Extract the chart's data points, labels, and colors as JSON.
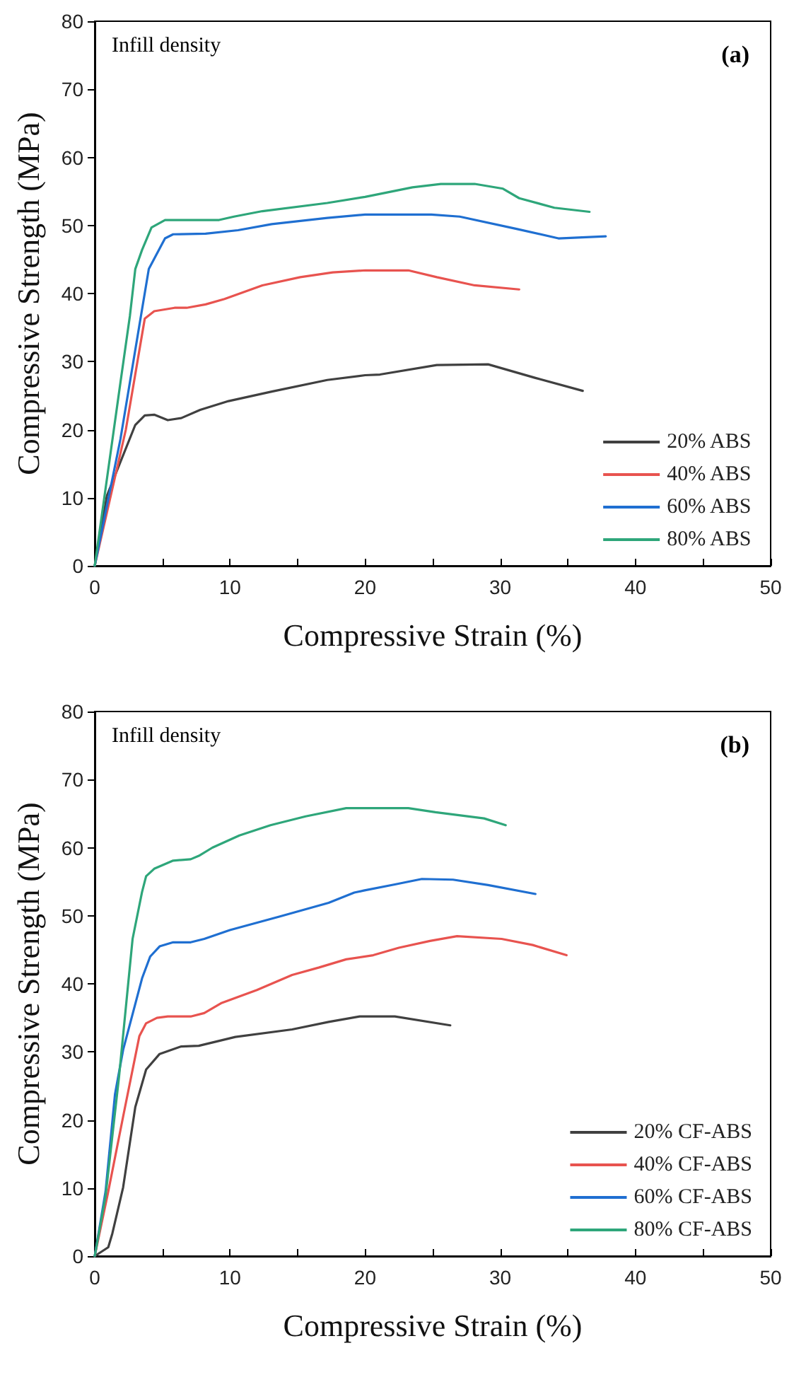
{
  "chart_data": [
    {
      "type": "line",
      "title": "(a)",
      "annotations": [
        "Infill density"
      ],
      "xlabel": "Compressive Strain (%)",
      "ylabel": "Compressive Strength (MPa)",
      "xlim": [
        0,
        50
      ],
      "xticks": [
        0,
        {
          "value": 5,
          "label": null
        },
        10,
        {
          "value": 15,
          "label": null
        },
        20,
        {
          "value": 25,
          "label": null
        },
        30,
        {
          "value": 35,
          "label": null
        },
        40,
        {
          "value": 45,
          "label": null
        },
        50
      ],
      "ylim": [
        0,
        80
      ],
      "yticks": [
        0,
        10,
        20,
        30,
        40,
        50,
        60,
        70,
        80
      ],
      "grid": false,
      "legend": "bottom right",
      "marker": "none",
      "line_style": "solid",
      "series": [
        {
          "name": "20% ABS",
          "color": "#404040",
          "x": [
            0,
            0.9,
            3,
            3.7,
            4.4,
            5.4,
            6.4,
            7.8,
            9.9,
            13.1,
            17.2,
            20,
            21.1,
            25.3,
            29.1,
            32.6,
            36.1
          ],
          "values": [
            0,
            10.3,
            20.7,
            22.1,
            22.2,
            21.4,
            21.7,
            22.9,
            24.2,
            25.6,
            27.3,
            28,
            28.1,
            29.5,
            29.6,
            27.6,
            25.7
          ]
        },
        {
          "name": "40% ABS",
          "color": "#e8534f",
          "x": [
            0,
            2.3,
            3.7,
            4.4,
            5.9,
            6.8,
            8.2,
            9.6,
            12.4,
            15.2,
            17.6,
            20,
            23.2,
            25.3,
            28.1,
            31.4
          ],
          "values": [
            0,
            20,
            36.3,
            37.4,
            37.9,
            37.9,
            38.4,
            39.2,
            41.2,
            42.4,
            43.1,
            43.4,
            43.4,
            42.4,
            41.2,
            40.6
          ]
        },
        {
          "name": "60% ABS",
          "color": "#1f6fd1",
          "x": [
            0,
            1.9,
            3.3,
            4,
            5.2,
            5.8,
            8.2,
            10.6,
            13.1,
            17.2,
            20,
            24.9,
            27,
            31.2,
            34.3,
            37.8
          ],
          "values": [
            0,
            18.6,
            35.3,
            43.6,
            48.1,
            48.7,
            48.8,
            49.3,
            50.2,
            51.1,
            51.6,
            51.6,
            51.3,
            49.5,
            48.1,
            48.4
          ]
        },
        {
          "name": "80% ABS",
          "color": "#2ea67a",
          "x": [
            0,
            1.9,
            2.6,
            3,
            3.5,
            4.2,
            5.2,
            9.2,
            10.3,
            12.4,
            17.2,
            20,
            23.5,
            25.6,
            28.1,
            30.2,
            31.4,
            34,
            36.6
          ],
          "values": [
            0,
            26.9,
            36.7,
            43.6,
            46.4,
            49.7,
            50.8,
            50.8,
            51.3,
            52.1,
            53.3,
            54.2,
            55.6,
            56.1,
            56.1,
            55.4,
            54,
            52.6,
            52
          ]
        }
      ]
    },
    {
      "type": "line",
      "title": "(b)",
      "annotations": [
        "Infill density"
      ],
      "xlabel": "Compressive Strain (%)",
      "ylabel": "Compressive Strength (MPa)",
      "xlim": [
        0,
        50
      ],
      "xticks": [
        0,
        {
          "value": 5,
          "label": null
        },
        10,
        {
          "value": 15,
          "label": null
        },
        20,
        {
          "value": 25,
          "label": null
        },
        30,
        {
          "value": 35,
          "label": null
        },
        40,
        {
          "value": 45,
          "label": null
        },
        50
      ],
      "ylim": [
        0,
        80
      ],
      "yticks": [
        0,
        10,
        20,
        30,
        40,
        50,
        60,
        70,
        80
      ],
      "grid": false,
      "legend": "bottom right",
      "marker": "none",
      "line_style": "solid",
      "series": [
        {
          "name": "20% CF-ABS",
          "color": "#404040",
          "x": [
            0,
            1,
            1.3,
            2.1,
            3,
            3.8,
            4.8,
            6.4,
            7.7,
            10.4,
            14.6,
            17.3,
            19.6,
            22.2,
            26.3
          ],
          "values": [
            0,
            1.3,
            3.3,
            10.1,
            21.9,
            27.4,
            29.7,
            30.8,
            30.9,
            32.2,
            33.3,
            34.4,
            35.2,
            35.2,
            33.9
          ]
        },
        {
          "name": "40% CF-ABS",
          "color": "#e8534f",
          "x": [
            0,
            1,
            2.1,
            3.3,
            3.8,
            4.6,
            5.4,
            7.1,
            8.1,
            9.4,
            12,
            14.6,
            16.6,
            18.6,
            20.6,
            22.5,
            24.8,
            26.8,
            30.1,
            32.4,
            34.9
          ],
          "values": [
            0,
            9.5,
            20.5,
            32.3,
            34.2,
            35,
            35.2,
            35.2,
            35.7,
            37.2,
            39.1,
            41.3,
            42.4,
            43.6,
            44.2,
            45.3,
            46.3,
            47,
            46.6,
            45.7,
            44.2
          ]
        },
        {
          "name": "60% CF-ABS",
          "color": "#1f6fd1",
          "x": [
            0,
            0.8,
            1.5,
            2.1,
            3.5,
            4.1,
            4.8,
            5.8,
            7.1,
            8.1,
            10,
            13.7,
            17.3,
            19.2,
            19.9,
            22.2,
            24.2,
            26.5,
            29.1,
            32.6
          ],
          "values": [
            0,
            9.5,
            23.8,
            30.3,
            40.8,
            44,
            45.5,
            46.1,
            46.1,
            46.6,
            47.9,
            49.9,
            51.9,
            53.4,
            53.7,
            54.6,
            55.4,
            55.3,
            54.5,
            53.2
          ]
        },
        {
          "name": "80% CF-ABS",
          "color": "#2ea67a",
          "x": [
            0,
            0.8,
            1.8,
            2.8,
            3.5,
            3.8,
            4.4,
            5.8,
            7.1,
            7.7,
            8.7,
            10.7,
            13,
            15.6,
            18.6,
            23.2,
            25.2,
            28.8,
            30.4
          ],
          "values": [
            0,
            8.8,
            26.4,
            46.6,
            53.5,
            55.8,
            56.9,
            58.1,
            58.3,
            58.8,
            60,
            61.8,
            63.3,
            64.6,
            65.8,
            65.8,
            65.2,
            64.3,
            63.3
          ]
        }
      ]
    }
  ]
}
